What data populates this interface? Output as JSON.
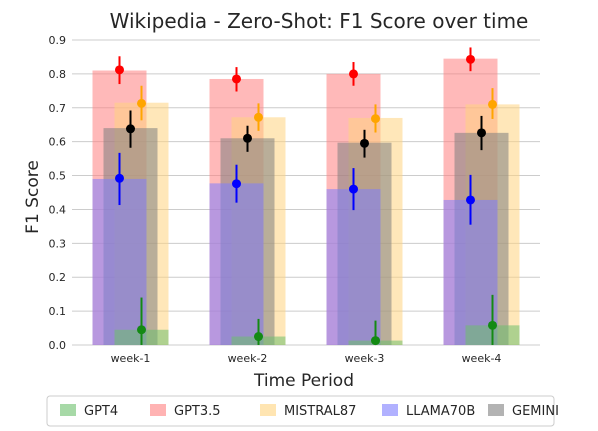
{
  "chart_data": {
    "type": "bar",
    "title": "Wikipedia - Zero-Shot: F1 Score over time",
    "xlabel": "Time Period",
    "ylabel": "F1 Score",
    "categories": [
      "week-1",
      "week-2",
      "week-3",
      "week-4"
    ],
    "ylim": [
      0,
      0.9
    ],
    "yticks": [
      "0.0",
      "0.1",
      "0.2",
      "0.3",
      "0.4",
      "0.5",
      "0.6",
      "0.7",
      "0.8",
      "0.9"
    ],
    "grid": true,
    "legend_position": "bottom",
    "series": [
      {
        "name": "GPT4",
        "color": "#6dbf6d",
        "dot_color": "#138a13",
        "values": [
          0.045,
          0.025,
          0.013,
          0.058
        ],
        "points": [
          0.045,
          0.025,
          0.013,
          0.058
        ],
        "err_low": [
          0.0,
          0.0,
          0.0,
          0.0
        ],
        "err_high": [
          0.14,
          0.077,
          0.072,
          0.148
        ]
      },
      {
        "name": "GPT3.5",
        "color": "#ff8080",
        "dot_color": "#ff0000",
        "values": [
          0.81,
          0.785,
          0.8,
          0.845
        ],
        "points": [
          0.812,
          0.785,
          0.8,
          0.843
        ],
        "err_low": [
          0.77,
          0.748,
          0.765,
          0.808
        ],
        "err_high": [
          0.852,
          0.82,
          0.835,
          0.878
        ]
      },
      {
        "name": "MISTRAL87",
        "color": "#ffd37f",
        "dot_color": "#ffa500",
        "values": [
          0.715,
          0.672,
          0.67,
          0.71
        ],
        "points": [
          0.713,
          0.672,
          0.668,
          0.71
        ],
        "err_low": [
          0.663,
          0.632,
          0.627,
          0.667
        ],
        "err_high": [
          0.765,
          0.713,
          0.71,
          0.758
        ]
      },
      {
        "name": "LLAMA70B",
        "color": "#7d7dff",
        "dot_color": "#0000ff",
        "values": [
          0.49,
          0.477,
          0.46,
          0.428
        ],
        "points": [
          0.492,
          0.476,
          0.46,
          0.428
        ],
        "err_low": [
          0.413,
          0.42,
          0.398,
          0.355
        ],
        "err_high": [
          0.567,
          0.532,
          0.522,
          0.502
        ]
      },
      {
        "name": "GEMINI",
        "color": "#808080",
        "dot_color": "#000000",
        "values": [
          0.64,
          0.61,
          0.597,
          0.626
        ],
        "points": [
          0.638,
          0.61,
          0.595,
          0.626
        ],
        "err_low": [
          0.582,
          0.57,
          0.553,
          0.575
        ],
        "err_high": [
          0.692,
          0.647,
          0.635,
          0.676
        ]
      }
    ]
  }
}
